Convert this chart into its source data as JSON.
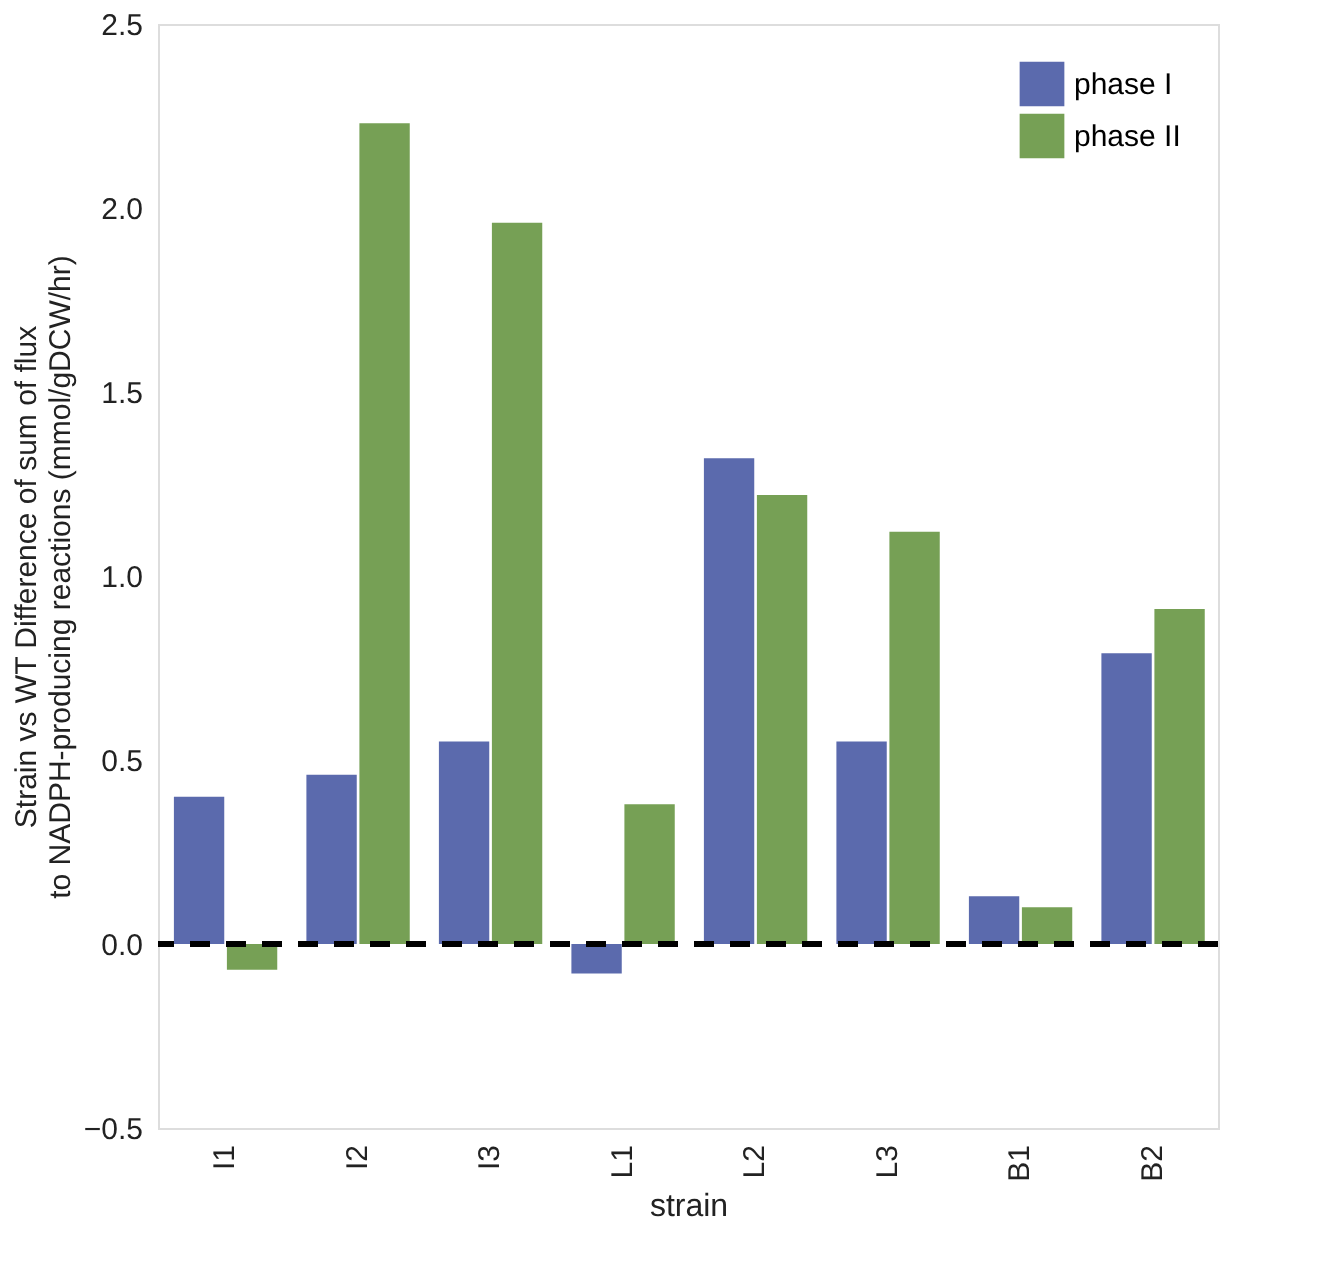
{
  "chart_data": {
    "type": "bar",
    "xlabel": "strain",
    "ylabel": "Strain vs WT Difference of sum of flux\nto NADPH-producing reactions (mmol/gDCW/hr)",
    "categories": [
      "I1",
      "I2",
      "I3",
      "L1",
      "L2",
      "L3",
      "B1",
      "B2"
    ],
    "series": [
      {
        "name": "phase I",
        "color": "#5b6aad",
        "values": [
          0.4,
          0.46,
          0.55,
          -0.08,
          1.32,
          0.55,
          0.13,
          0.79
        ]
      },
      {
        "name": "phase II",
        "color": "#76a055",
        "values": [
          -0.07,
          2.23,
          1.96,
          0.38,
          1.22,
          1.12,
          0.1,
          0.91
        ]
      }
    ],
    "ylim": [
      -0.5,
      2.5
    ],
    "yticks": [
      -0.5,
      {
        "value": 0,
        "label": "0.0"
      },
      0.5,
      {
        "value": 1,
        "label": "1.0"
      },
      1.5,
      {
        "value": 2,
        "label": "2.0"
      },
      2.5
    ],
    "ref_lines": [
      {
        "axis": "y",
        "value": 0,
        "color": "#000000",
        "line_style": "dashed"
      }
    ],
    "grid": false,
    "legend": "top right"
  }
}
